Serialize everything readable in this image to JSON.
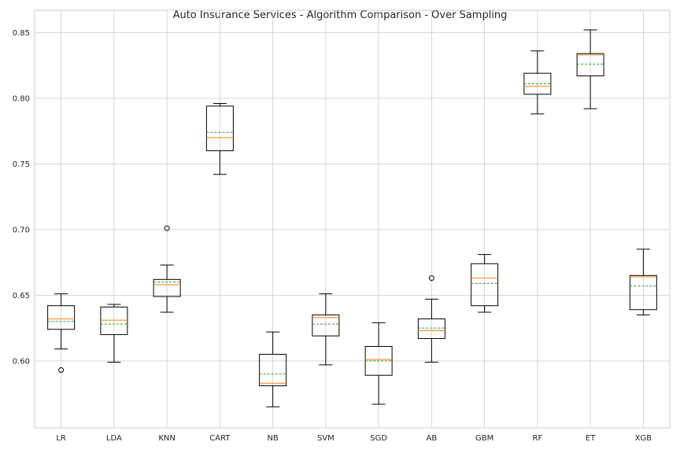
{
  "chart_data": {
    "type": "boxplot",
    "title": "Auto Insurance Services - Algorithm Comparison - Over Sampling",
    "xlabel": "",
    "ylabel": "",
    "ylim": [
      0.549,
      0.867
    ],
    "yticks": [
      "0.60",
      "0.65",
      "0.70",
      "0.75",
      "0.80",
      "0.85"
    ],
    "grid": true,
    "colors": {
      "median": "#ff7f0e",
      "mean": "#2ca02c",
      "box": "#000000"
    },
    "categories": [
      "LR",
      "LDA",
      "KNN",
      "CART",
      "NB",
      "SVM",
      "SGD",
      "AB",
      "GBM",
      "RF",
      "ET",
      "XGB"
    ],
    "boxes": [
      {
        "name": "LR",
        "whisker_low": 0.609,
        "q1": 0.624,
        "median": 0.632,
        "q3": 0.642,
        "whisker_high": 0.651,
        "mean": 0.63,
        "outliers": [
          0.593
        ]
      },
      {
        "name": "LDA",
        "whisker_low": 0.599,
        "q1": 0.62,
        "median": 0.631,
        "q3": 0.641,
        "whisker_high": 0.643,
        "mean": 0.628,
        "outliers": []
      },
      {
        "name": "KNN",
        "whisker_low": 0.637,
        "q1": 0.649,
        "median": 0.658,
        "q3": 0.662,
        "whisker_high": 0.673,
        "mean": 0.66,
        "outliers": [
          0.701
        ]
      },
      {
        "name": "CART",
        "whisker_low": 0.742,
        "q1": 0.76,
        "median": 0.77,
        "q3": 0.794,
        "whisker_high": 0.796,
        "mean": 0.774,
        "outliers": []
      },
      {
        "name": "NB",
        "whisker_low": 0.565,
        "q1": 0.581,
        "median": 0.583,
        "q3": 0.605,
        "whisker_high": 0.622,
        "mean": 0.59,
        "outliers": []
      },
      {
        "name": "SVM",
        "whisker_low": 0.597,
        "q1": 0.619,
        "median": 0.633,
        "q3": 0.635,
        "whisker_high": 0.651,
        "mean": 0.628,
        "outliers": []
      },
      {
        "name": "SGD",
        "whisker_low": 0.567,
        "q1": 0.589,
        "median": 0.601,
        "q3": 0.611,
        "whisker_high": 0.629,
        "mean": 0.6,
        "outliers": []
      },
      {
        "name": "AB",
        "whisker_low": 0.599,
        "q1": 0.617,
        "median": 0.623,
        "q3": 0.632,
        "whisker_high": 0.647,
        "mean": 0.625,
        "outliers": [
          0.663
        ]
      },
      {
        "name": "GBM",
        "whisker_low": 0.637,
        "q1": 0.642,
        "median": 0.663,
        "q3": 0.674,
        "whisker_high": 0.681,
        "mean": 0.659,
        "outliers": []
      },
      {
        "name": "RF",
        "whisker_low": 0.788,
        "q1": 0.803,
        "median": 0.809,
        "q3": 0.819,
        "whisker_high": 0.836,
        "mean": 0.811,
        "outliers": []
      },
      {
        "name": "ET",
        "whisker_low": 0.792,
        "q1": 0.817,
        "median": 0.833,
        "q3": 0.834,
        "whisker_high": 0.852,
        "mean": 0.826,
        "outliers": []
      },
      {
        "name": "XGB",
        "whisker_low": 0.635,
        "q1": 0.639,
        "median": 0.664,
        "q3": 0.665,
        "whisker_high": 0.685,
        "mean": 0.657,
        "outliers": []
      }
    ]
  }
}
